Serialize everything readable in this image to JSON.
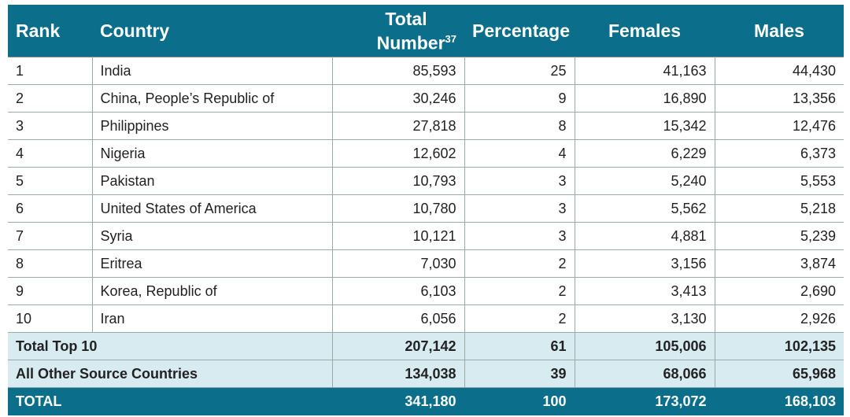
{
  "headers": {
    "rank": "Rank",
    "country": "Country",
    "total_line1": "Total",
    "total_line2": "Number",
    "total_sup": "37",
    "percentage": "Percentage",
    "females": "Females",
    "males": "Males"
  },
  "rows": [
    [
      "1",
      "India",
      "85,593",
      "25",
      "41,163",
      "44,430"
    ],
    [
      "2",
      "China, People’s Republic of",
      "30,246",
      "9",
      "16,890",
      "13,356"
    ],
    [
      "3",
      "Philippines",
      "27,818",
      "8",
      "15,342",
      "12,476"
    ],
    [
      "4",
      "Nigeria",
      "12,602",
      "4",
      "6,229",
      "6,373"
    ],
    [
      "5",
      "Pakistan",
      "10,793",
      "3",
      "5,240",
      "5,553"
    ],
    [
      "6",
      "United States of America",
      "10,780",
      "3",
      "5,562",
      "5,218"
    ],
    [
      "7",
      "Syria",
      "10,121",
      "3",
      "4,881",
      "5,239"
    ],
    [
      "8",
      "Eritrea",
      "7,030",
      "2",
      "3,156",
      "3,874"
    ],
    [
      "9",
      "Korea, Republic of",
      "6,103",
      "2",
      "3,413",
      "2,690"
    ],
    [
      "10",
      "Iran",
      "6,056",
      "2",
      "3,130",
      "2,926"
    ]
  ],
  "summary": [
    [
      "Total Top 10",
      "207,142",
      "61",
      "105,006",
      "102,135"
    ],
    [
      "All Other Source Countries",
      "134,038",
      "39",
      "68,066",
      "65,968"
    ]
  ],
  "total": [
    "TOTAL",
    "341,180",
    "100",
    "173,072",
    "168,103"
  ],
  "colors": {
    "header": "#0b6f8c",
    "subtotal": "#d7ebf1"
  }
}
